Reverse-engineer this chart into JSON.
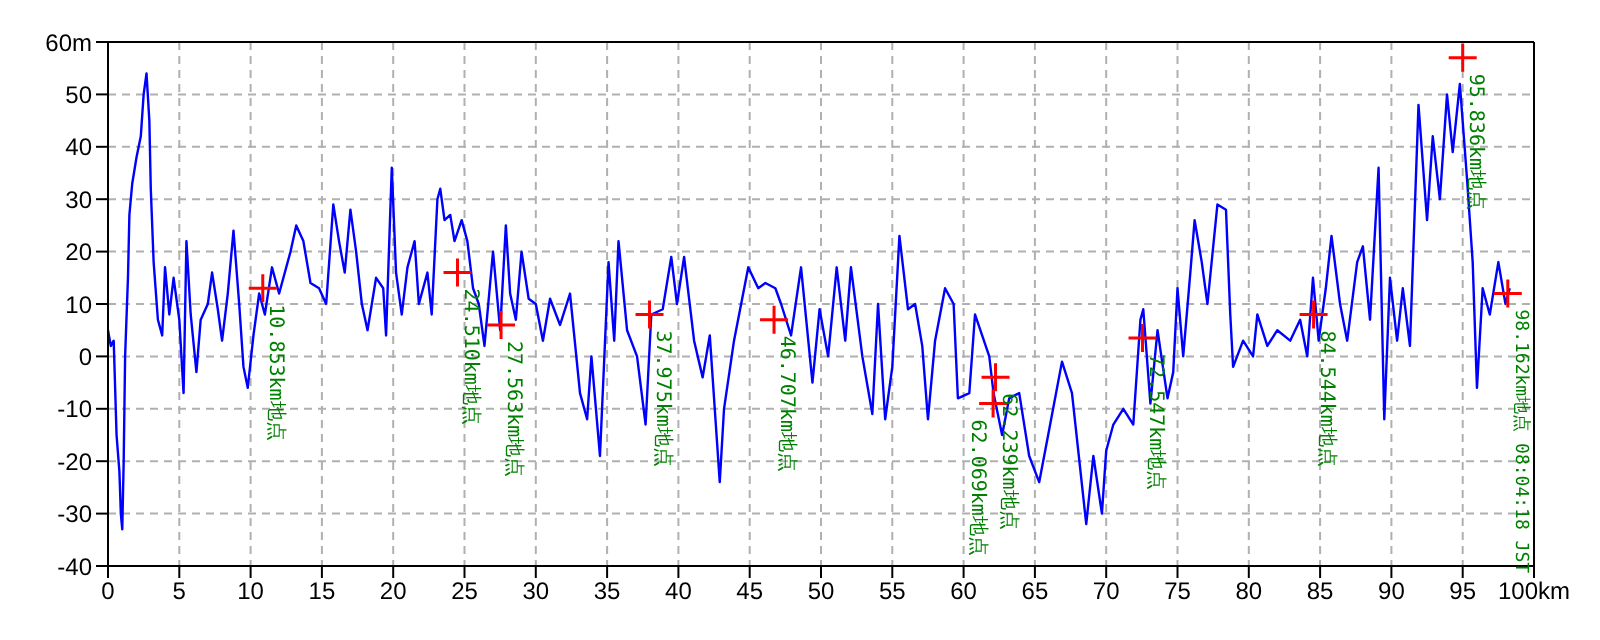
{
  "chart_data": {
    "type": "line",
    "xlim": [
      0,
      100
    ],
    "ylim": [
      -40,
      60
    ],
    "xticks": [
      0,
      5,
      10,
      15,
      20,
      25,
      30,
      35,
      40,
      45,
      50,
      55,
      60,
      65,
      70,
      75,
      80,
      85,
      90,
      95,
      {
        "value": 100,
        "label": "100km"
      }
    ],
    "yticks": [
      -40,
      -30,
      -20,
      -10,
      0,
      10,
      20,
      30,
      40,
      50,
      {
        "value": 60,
        "label": "60m"
      }
    ],
    "grid": true,
    "line_style": "solid",
    "marker": "none",
    "series": [
      {
        "color": "#0000ff",
        "x": [
          0,
          0.2,
          0.4,
          0.6,
          0.8,
          0.9,
          1.0,
          1.1,
          1.2,
          1.4,
          1.5,
          1.7,
          2.0,
          2.3,
          2.5,
          2.7,
          2.9,
          3.0,
          3.2,
          3.5,
          3.8,
          4.0,
          4.3,
          4.6,
          5.0,
          5.3,
          5.5,
          5.8,
          6.2,
          6.5,
          7.0,
          7.3,
          7.7,
          8.0,
          8.4,
          8.8,
          9.2,
          9.5,
          9.8,
          10.2,
          10.6,
          11.0,
          11.5,
          12.0,
          12.8,
          13.2,
          13.7,
          14.2,
          14.8,
          15.3,
          15.8,
          16.2,
          16.6,
          17.0,
          17.4,
          17.8,
          18.2,
          18.8,
          19.3,
          19.5,
          19.9,
          20.2,
          20.6,
          21.0,
          21.5,
          21.8,
          22.4,
          22.7,
          23.1,
          23.3,
          23.6,
          24.0,
          24.3,
          24.8,
          25.2,
          25.6,
          26.0,
          26.4,
          27.0,
          27.5,
          27.9,
          28.2,
          28.6,
          29.0,
          29.5,
          30.0,
          30.5,
          31.0,
          31.7,
          32.4,
          33.1,
          33.6,
          33.9,
          34.5,
          35.1,
          35.5,
          35.8,
          36.4,
          37.1,
          37.7,
          38.1,
          38.9,
          39.5,
          39.9,
          40.4,
          41.1,
          41.7,
          42.2,
          42.9,
          43.2,
          43.9,
          44.9,
          45.6,
          46.1,
          46.8,
          47.2,
          47.9,
          48.6,
          49.4,
          49.9,
          50.5,
          51.1,
          51.7,
          52.1,
          52.9,
          53.6,
          54.0,
          54.5,
          55.0,
          55.5,
          56.1,
          56.6,
          57.1,
          57.5,
          58.0,
          58.7,
          59.3,
          59.6,
          60.4,
          60.8,
          61.8,
          62.1,
          62.7,
          63.2,
          63.9,
          64.6,
          65.3,
          66.0,
          66.9,
          67.6,
          68.6,
          69.1,
          69.7,
          70.0,
          70.5,
          71.2,
          71.9,
          72.4,
          72.6,
          73.1,
          73.6,
          74.3,
          74.7,
          75.0,
          75.4,
          75.9,
          76.2,
          76.7,
          77.1,
          77.8,
          78.4,
          78.7,
          78.9,
          79.6,
          80.3,
          80.6,
          81.3,
          82.0,
          82.9,
          83.6,
          84.1,
          84.5,
          84.9,
          85.4,
          85.8,
          86.4,
          86.9,
          87.6,
          88.0,
          88.5,
          89.1,
          89.5,
          89.9,
          90.4,
          90.8,
          91.3,
          91.9,
          92.5,
          92.9,
          93.4,
          93.9,
          94.3,
          94.8,
          95.3,
          95.7,
          96.0,
          96.4,
          96.9,
          97.5,
          98.0,
          98.3
        ],
        "values": [
          5,
          2,
          3,
          -15,
          -22,
          -30,
          -33,
          -20,
          0,
          15,
          27,
          33,
          38,
          42,
          50,
          54,
          45,
          32,
          18,
          7,
          4,
          17,
          8,
          15,
          7,
          -7,
          22,
          8,
          -3,
          7,
          10,
          16,
          9,
          3,
          12,
          24,
          10,
          -2,
          -6,
          4,
          12,
          8,
          17,
          12,
          20,
          25,
          22,
          14,
          13,
          10,
          29,
          22,
          16,
          28,
          20,
          10,
          5,
          15,
          13,
          4,
          36,
          16,
          8,
          17,
          22,
          10,
          16,
          8,
          30,
          32,
          26,
          27,
          22,
          26,
          22,
          13,
          10,
          2,
          20,
          5,
          25,
          12,
          7,
          20,
          11,
          10,
          3,
          11,
          6,
          12,
          -7,
          -12,
          0,
          -19,
          18,
          3,
          22,
          5,
          0,
          -13,
          8,
          9,
          19,
          10,
          19,
          3,
          -4,
          4,
          -24,
          -10,
          3,
          17,
          13,
          14,
          13,
          10,
          4,
          17,
          -5,
          9,
          0,
          17,
          3,
          17,
          0,
          -11,
          10,
          -12,
          -2,
          23,
          9,
          10,
          2,
          -12,
          3,
          13,
          10,
          -8,
          -7,
          8,
          0,
          -7,
          -15,
          -8,
          -7,
          -19,
          -24,
          -14,
          -1,
          -7,
          -32,
          -19,
          -30,
          -18,
          -13,
          -10,
          -13,
          7,
          9,
          -9,
          5,
          -8,
          -3,
          13,
          0,
          16,
          26,
          18,
          10,
          29,
          28,
          8,
          -2,
          3,
          0,
          8,
          2,
          5,
          3,
          7,
          0,
          15,
          3,
          13,
          23,
          10,
          3,
          18,
          21,
          7,
          36,
          -12,
          15,
          3,
          13,
          2,
          48,
          26,
          42,
          30,
          50,
          39,
          52,
          34,
          18,
          -6,
          13,
          8,
          18,
          10,
          13
        ]
      },
      {
        "type": "scatter",
        "marker": "cross",
        "color": "#ff0000",
        "x": [
          10.853,
          24.51,
          27.563,
          37.975,
          46.707,
          62.239,
          62.069,
          72.547,
          84.544,
          95,
          98.162
        ],
        "values": [
          13,
          16,
          6,
          8,
          7,
          -4,
          -9,
          3.5,
          8,
          57,
          12
        ]
      }
    ],
    "annotations": [
      {
        "text": "10.853km地点",
        "x": 10.853,
        "y": 13
      },
      {
        "text": "24.510km地点",
        "x": 24.51,
        "y": 16
      },
      {
        "text": "27.563km地点",
        "x": 27.563,
        "y": 6
      },
      {
        "text": "37.975km地点",
        "x": 37.975,
        "y": 8
      },
      {
        "text": "46.707km地点",
        "x": 46.707,
        "y": 7
      },
      {
        "text": "62.239km地点",
        "x": 62.239,
        "y": -4
      },
      {
        "text": "62.069km地点",
        "x": 62.069,
        "y": -9
      },
      {
        "text": "72.547km地点",
        "x": 72.547,
        "y": 3.5
      },
      {
        "text": "84.544km地点",
        "x": 84.544,
        "y": 8
      },
      {
        "text": "95.836km地点",
        "x": 95,
        "y": 57
      },
      {
        "text": "98.162km地点 08:04:18 JST",
        "x": 98.162,
        "y": 12
      }
    ]
  }
}
